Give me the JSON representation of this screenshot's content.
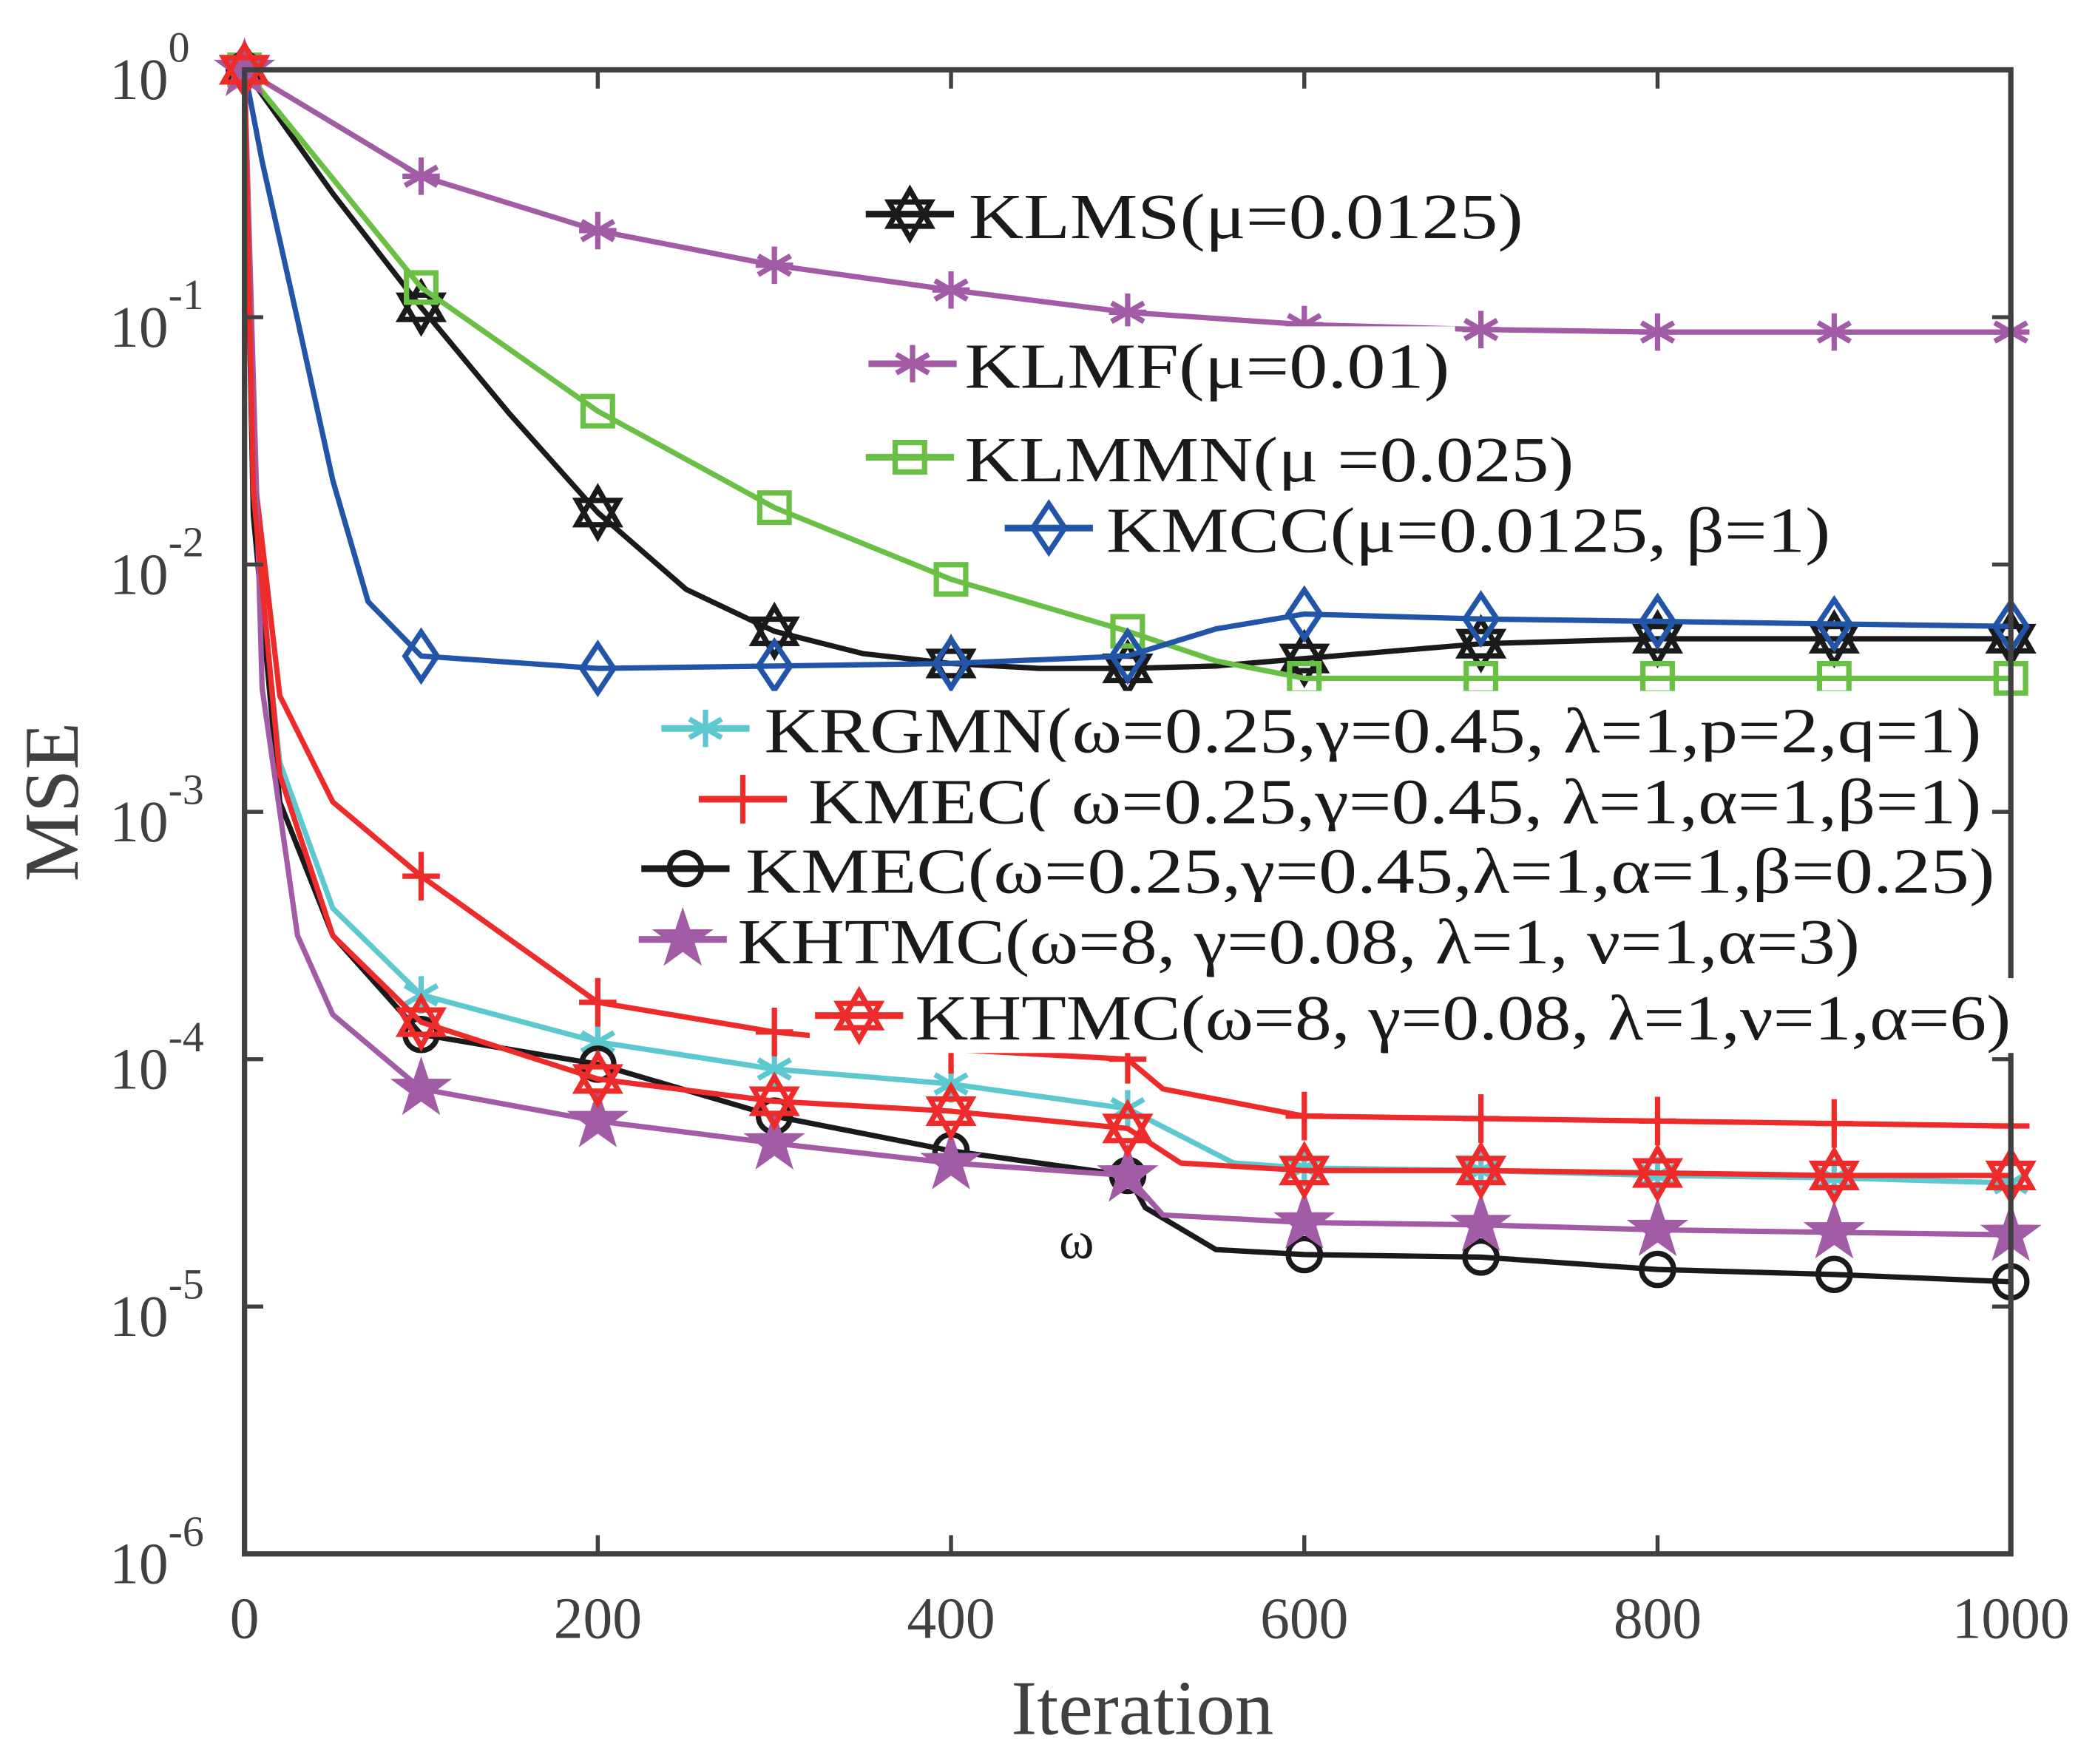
{
  "chart_data": {
    "type": "line",
    "title": "",
    "xlabel": "Iteration",
    "ylabel": "MSE",
    "xlim": [
      0,
      1000
    ],
    "ylim": [
      1e-06,
      1
    ],
    "yscale": "log",
    "xticks": [
      "0",
      "200",
      "400",
      "600",
      "800",
      "1000"
    ],
    "yticks": [
      {
        "base": "10",
        "exp": "0"
      },
      {
        "base": "10",
        "exp": "-1"
      },
      {
        "base": "10",
        "exp": "-2"
      },
      {
        "base": "10",
        "exp": "-3"
      },
      {
        "base": "10",
        "exp": "-4"
      },
      {
        "base": "10",
        "exp": "-5"
      },
      {
        "base": "10",
        "exp": "-6"
      }
    ],
    "legend_placement": "inside, upper-right and center-right",
    "annotation": {
      "text": "ω",
      "x": 480,
      "y_log10": -4.74
    },
    "series": [
      {
        "name": "KLMS(μ=0.0125)",
        "color": "#1a1a1a",
        "marker": "hexagram",
        "x": [
          0,
          50,
          100,
          150,
          200,
          250,
          300,
          350,
          400,
          450,
          500,
          550,
          600,
          700,
          800,
          900,
          1000
        ],
        "y_log10": [
          0,
          -0.5,
          -0.96,
          -1.39,
          -1.79,
          -2.1,
          -2.27,
          -2.36,
          -2.4,
          -2.42,
          -2.42,
          -2.41,
          -2.38,
          -2.32,
          -2.3,
          -2.3,
          -2.3
        ]
      },
      {
        "name": "KLMF(μ=0.01)",
        "color": "#a25ca6",
        "marker": "asterisk",
        "x": [
          0,
          100,
          200,
          300,
          400,
          500,
          600,
          700,
          800,
          900,
          1000
        ],
        "y_log10": [
          0,
          -0.43,
          -0.65,
          -0.79,
          -0.89,
          -0.98,
          -1.03,
          -1.05,
          -1.06,
          -1.06,
          -1.06
        ]
      },
      {
        "name": "KLMMN(μ =0.025)",
        "color": "#6abf45",
        "marker": "square",
        "x": [
          0,
          100,
          200,
          300,
          400,
          500,
          550,
          600,
          700,
          800,
          900,
          1000
        ],
        "y_log10": [
          0,
          -0.88,
          -1.38,
          -1.77,
          -2.06,
          -2.27,
          -2.39,
          -2.46,
          -2.46,
          -2.46,
          -2.46,
          -2.46
        ]
      },
      {
        "name": "KMCC(μ=0.0125, β=1)",
        "color": "#2255a8",
        "marker": "diamond",
        "x": [
          0,
          10,
          30,
          50,
          70,
          100,
          200,
          300,
          400,
          500,
          550,
          600,
          700,
          800,
          900,
          1000
        ],
        "y_log10": [
          0,
          -0.37,
          -1.01,
          -1.66,
          -2.15,
          -2.37,
          -2.42,
          -2.41,
          -2.4,
          -2.37,
          -2.26,
          -2.2,
          -2.22,
          -2.23,
          -2.24,
          -2.25
        ]
      },
      {
        "name": "KRGMN(ω=0.25,γ=0.45, λ=1,p=2,q=1)",
        "color": "#5ec8d0",
        "marker": "x-asterisk",
        "x": [
          0,
          5,
          20,
          50,
          100,
          200,
          300,
          400,
          500,
          530,
          560,
          600,
          700,
          800,
          900,
          1000
        ],
        "y_log10": [
          0,
          -1.8,
          -2.8,
          -3.39,
          -3.74,
          -3.93,
          -4.04,
          -4.1,
          -4.2,
          -4.31,
          -4.42,
          -4.44,
          -4.45,
          -4.47,
          -4.48,
          -4.5
        ]
      },
      {
        "name": "KMEC( ω=0.25,γ=0.45, λ=1,α=1,β=1)",
        "color": "#ee2b2b",
        "marker": "plus",
        "x": [
          0,
          5,
          20,
          50,
          100,
          200,
          300,
          400,
          500,
          520,
          600,
          700,
          800,
          900,
          1000
        ],
        "y_log10": [
          0,
          -1.6,
          -2.53,
          -2.96,
          -3.26,
          -3.77,
          -3.89,
          -3.96,
          -4.0,
          -4.12,
          -4.23,
          -4.24,
          -4.25,
          -4.26,
          -4.27
        ]
      },
      {
        "name": "KMEC(ω=0.25,γ=0.45,λ=1,α=1,β=0.25)",
        "color": "#1a1a1a",
        "marker": "circle",
        "x": [
          0,
          5,
          20,
          50,
          100,
          200,
          300,
          400,
          500,
          510,
          550,
          600,
          700,
          800,
          900,
          1000
        ],
        "y_log10": [
          0,
          -1.8,
          -2.96,
          -3.5,
          -3.9,
          -4.02,
          -4.23,
          -4.37,
          -4.47,
          -4.6,
          -4.77,
          -4.79,
          -4.8,
          -4.85,
          -4.87,
          -4.9
        ]
      },
      {
        "name": "KHTMC(ω=8, γ=0.08, λ=1, ν=1,α=3)",
        "color": "#a25ca6",
        "marker": "star",
        "x": [
          0,
          10,
          30,
          50,
          100,
          200,
          300,
          400,
          500,
          520,
          600,
          700,
          800,
          900,
          1000
        ],
        "y_log10": [
          0,
          -2.5,
          -3.5,
          -3.82,
          -4.12,
          -4.25,
          -4.34,
          -4.42,
          -4.47,
          -4.63,
          -4.66,
          -4.67,
          -4.69,
          -4.7,
          -4.71
        ]
      },
      {
        "name": "KHTMC(ω=8, γ=0.08, λ=1,ν=1,α=6)",
        "color": "#ee2b2b",
        "marker": "hexagram",
        "x": [
          0,
          5,
          20,
          50,
          100,
          200,
          300,
          400,
          500,
          530,
          600,
          700,
          800,
          900,
          1000
        ],
        "y_log10": [
          0,
          -1.7,
          -2.85,
          -3.5,
          -3.85,
          -4.08,
          -4.17,
          -4.21,
          -4.28,
          -4.42,
          -4.45,
          -4.45,
          -4.46,
          -4.47,
          -4.47
        ]
      }
    ]
  }
}
